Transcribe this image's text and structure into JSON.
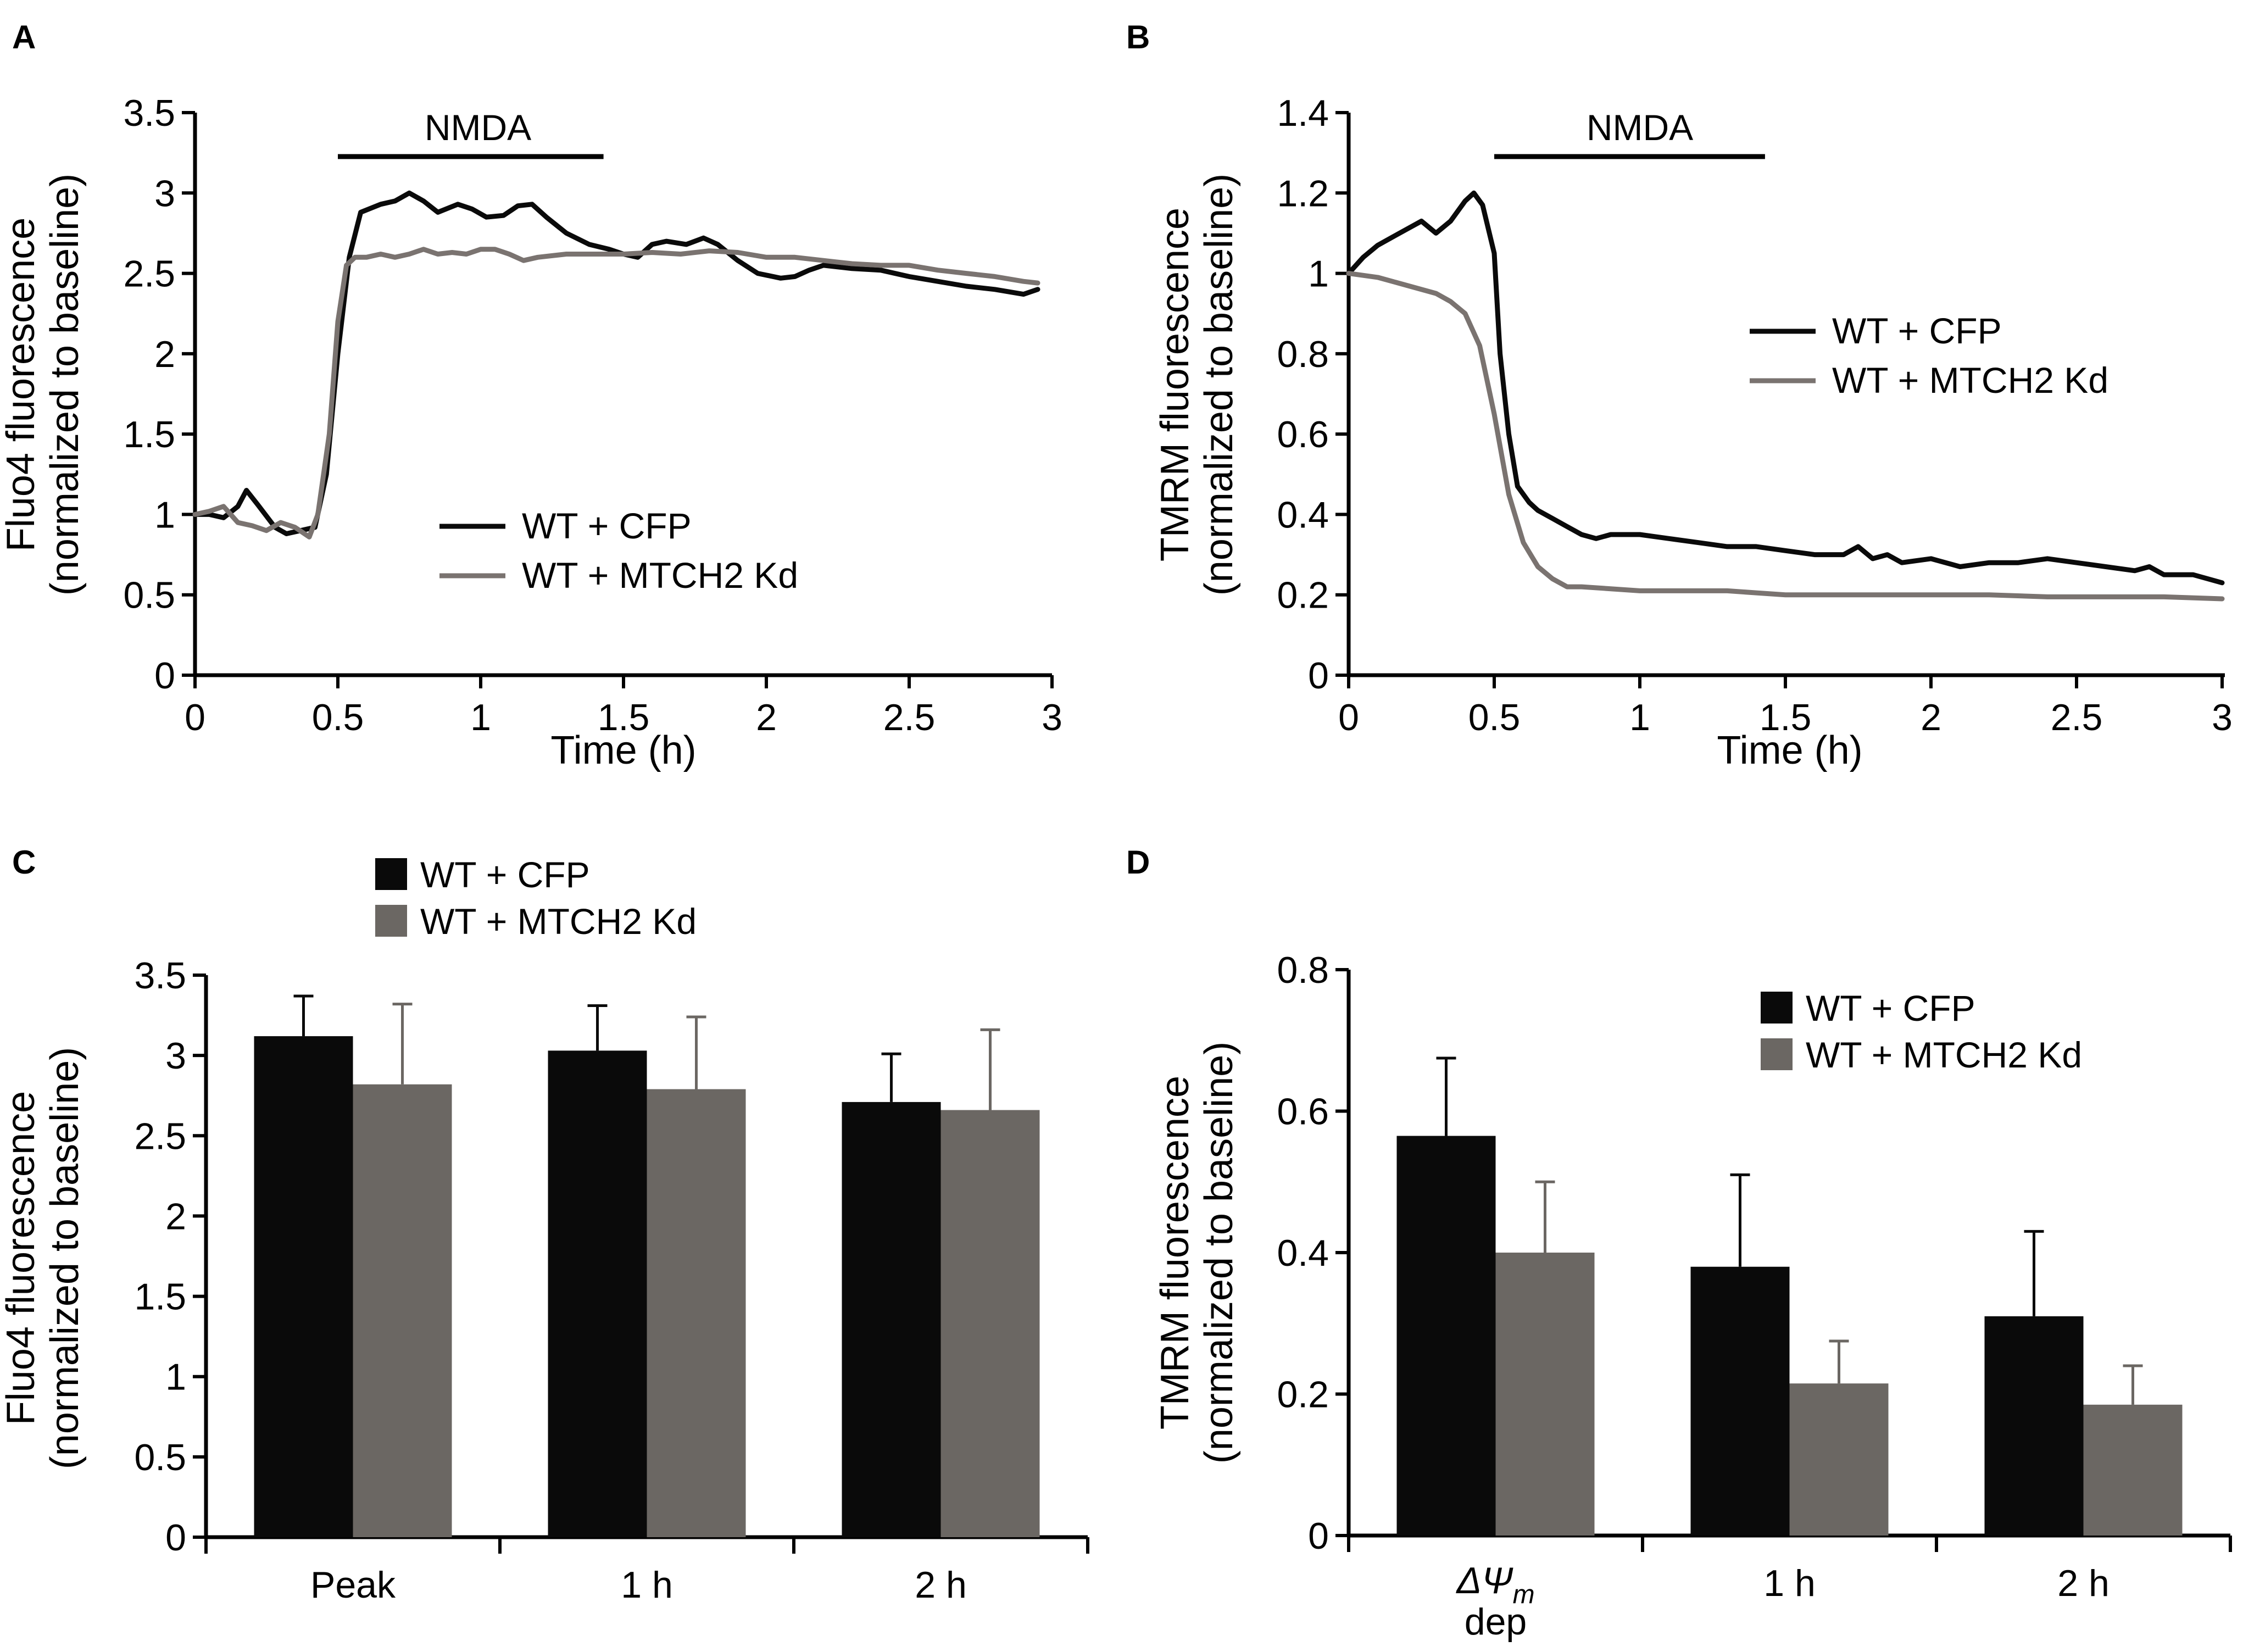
{
  "colors": {
    "wt_cfp": "#0a0a0a",
    "mtch2_line": "#7a7370",
    "mtch2_bar": "#6b6763",
    "axis": "#000000"
  },
  "chart_data": [
    {
      "panel": "A",
      "type": "line",
      "ylabel": [
        "Fluo4 fluorescence",
        "(normalized to baseline)"
      ],
      "xlabel": "Time (h)",
      "xlim": [
        0,
        3
      ],
      "ylim": [
        0,
        3.5
      ],
      "xticks": [
        0,
        0.5,
        1,
        1.5,
        2,
        2.5,
        3
      ],
      "xticklabels": [
        "0",
        "0.5",
        "1",
        "1.5",
        "2",
        "2.5",
        "3"
      ],
      "yticks": [
        0,
        0.5,
        1,
        1.5,
        2,
        2.5,
        3,
        3.5
      ],
      "yticklabels": [
        "0",
        "0.5",
        "1",
        "1.5",
        "2",
        "2.5",
        "3",
        "3.5"
      ],
      "annotation": {
        "text": "NMDA",
        "x_start": 0.5,
        "x_end": 1.43
      },
      "legend": [
        "WT + CFP",
        "WT + MTCH2 Kd"
      ],
      "legend_italic": false,
      "legend_position": "center-left",
      "series": [
        {
          "name": "WT + CFP",
          "color": "#0a0a0a",
          "x": [
            0,
            0.05,
            0.1,
            0.15,
            0.18,
            0.22,
            0.28,
            0.32,
            0.37,
            0.42,
            0.46,
            0.5,
            0.54,
            0.58,
            0.65,
            0.7,
            0.75,
            0.8,
            0.85,
            0.92,
            0.97,
            1.02,
            1.08,
            1.13,
            1.18,
            1.23,
            1.3,
            1.38,
            1.45,
            1.5,
            1.55,
            1.6,
            1.65,
            1.72,
            1.78,
            1.83,
            1.9,
            1.97,
            2.05,
            2.1,
            2.15,
            2.2,
            2.3,
            2.4,
            2.5,
            2.6,
            2.7,
            2.8,
            2.9,
            2.95
          ],
          "values": [
            1.0,
            1.0,
            0.98,
            1.05,
            1.15,
            1.06,
            0.92,
            0.88,
            0.9,
            0.92,
            1.25,
            2.0,
            2.6,
            2.88,
            2.93,
            2.95,
            3.0,
            2.95,
            2.88,
            2.93,
            2.9,
            2.85,
            2.86,
            2.92,
            2.93,
            2.85,
            2.75,
            2.68,
            2.65,
            2.62,
            2.6,
            2.68,
            2.7,
            2.68,
            2.72,
            2.68,
            2.58,
            2.5,
            2.47,
            2.48,
            2.52,
            2.55,
            2.53,
            2.52,
            2.48,
            2.45,
            2.42,
            2.4,
            2.37,
            2.4
          ]
        },
        {
          "name": "WT + MTCH2 Kd",
          "color": "#7a7370",
          "x": [
            0,
            0.05,
            0.1,
            0.15,
            0.2,
            0.25,
            0.3,
            0.35,
            0.4,
            0.43,
            0.47,
            0.5,
            0.53,
            0.56,
            0.6,
            0.65,
            0.7,
            0.75,
            0.8,
            0.85,
            0.9,
            0.95,
            1.0,
            1.05,
            1.1,
            1.15,
            1.2,
            1.3,
            1.4,
            1.5,
            1.6,
            1.7,
            1.8,
            1.9,
            2.0,
            2.1,
            2.2,
            2.3,
            2.4,
            2.5,
            2.6,
            2.7,
            2.8,
            2.9,
            2.95
          ],
          "values": [
            1.0,
            1.02,
            1.05,
            0.95,
            0.93,
            0.9,
            0.95,
            0.92,
            0.86,
            1.0,
            1.5,
            2.2,
            2.55,
            2.6,
            2.6,
            2.62,
            2.6,
            2.62,
            2.65,
            2.62,
            2.63,
            2.62,
            2.65,
            2.65,
            2.62,
            2.58,
            2.6,
            2.62,
            2.62,
            2.62,
            2.63,
            2.62,
            2.64,
            2.63,
            2.6,
            2.6,
            2.58,
            2.56,
            2.55,
            2.55,
            2.52,
            2.5,
            2.48,
            2.45,
            2.44
          ]
        }
      ]
    },
    {
      "panel": "B",
      "type": "line",
      "ylabel": [
        "TMRM fluorescence",
        "(normalized to baseline)"
      ],
      "xlabel": "Time (h)",
      "xlim": [
        0,
        3
      ],
      "ylim": [
        0,
        1.4
      ],
      "xticks": [
        0,
        0.5,
        1,
        1.5,
        2,
        2.5,
        3
      ],
      "xticklabels": [
        "0",
        "0.5",
        "1",
        "1.5",
        "2",
        "2.5",
        "3"
      ],
      "yticks": [
        0,
        0.2,
        0.4,
        0.6,
        0.8,
        1,
        1.2,
        1.4
      ],
      "yticklabels": [
        "0",
        "0.2",
        "0.4",
        "0.6",
        "0.8",
        "1",
        "1.2",
        "1.4"
      ],
      "annotation": {
        "text": "NMDA",
        "x_start": 0.5,
        "x_end": 1.43
      },
      "legend": [
        "WT + CFP",
        "WT + MTCH2 Kd"
      ],
      "legend_italic": true,
      "legend_position": "top-right",
      "series": [
        {
          "name": "WT + CFP",
          "color": "#0a0a0a",
          "x": [
            0,
            0.05,
            0.1,
            0.15,
            0.2,
            0.25,
            0.3,
            0.35,
            0.4,
            0.43,
            0.46,
            0.5,
            0.52,
            0.55,
            0.58,
            0.62,
            0.65,
            0.7,
            0.75,
            0.8,
            0.85,
            0.9,
            1.0,
            1.1,
            1.2,
            1.3,
            1.4,
            1.5,
            1.6,
            1.7,
            1.75,
            1.8,
            1.85,
            1.9,
            2.0,
            2.1,
            2.2,
            2.3,
            2.4,
            2.5,
            2.6,
            2.7,
            2.75,
            2.8,
            2.9,
            3.0
          ],
          "values": [
            1.0,
            1.04,
            1.07,
            1.09,
            1.11,
            1.13,
            1.1,
            1.13,
            1.18,
            1.2,
            1.17,
            1.05,
            0.8,
            0.6,
            0.47,
            0.43,
            0.41,
            0.39,
            0.37,
            0.35,
            0.34,
            0.35,
            0.35,
            0.34,
            0.33,
            0.32,
            0.32,
            0.31,
            0.3,
            0.3,
            0.32,
            0.29,
            0.3,
            0.28,
            0.29,
            0.27,
            0.28,
            0.28,
            0.29,
            0.28,
            0.27,
            0.26,
            0.27,
            0.25,
            0.25,
            0.23
          ]
        },
        {
          "name": "WT + MTCH2 Kd",
          "color": "#7a7370",
          "x": [
            0,
            0.1,
            0.2,
            0.3,
            0.35,
            0.4,
            0.45,
            0.5,
            0.55,
            0.6,
            0.65,
            0.7,
            0.75,
            0.8,
            0.9,
            1.0,
            1.1,
            1.2,
            1.3,
            1.4,
            1.5,
            1.6,
            1.7,
            1.8,
            1.9,
            2.0,
            2.2,
            2.4,
            2.6,
            2.8,
            3.0
          ],
          "values": [
            1.0,
            0.99,
            0.97,
            0.95,
            0.93,
            0.9,
            0.82,
            0.65,
            0.45,
            0.33,
            0.27,
            0.24,
            0.22,
            0.22,
            0.215,
            0.21,
            0.21,
            0.21,
            0.21,
            0.205,
            0.2,
            0.2,
            0.2,
            0.2,
            0.2,
            0.2,
            0.2,
            0.195,
            0.195,
            0.195,
            0.19
          ]
        }
      ]
    },
    {
      "panel": "C",
      "type": "bar",
      "ylabel": [
        "Fluo4 fluorescence",
        "(normalized to baseline)"
      ],
      "ylim": [
        0,
        3.5
      ],
      "yticks": [
        0,
        0.5,
        1,
        1.5,
        2,
        2.5,
        3,
        3.5
      ],
      "yticklabels": [
        "0",
        "0.5",
        "1",
        "1.5",
        "2",
        "2.5",
        "3",
        "3.5"
      ],
      "categories": [
        "Peak",
        "1 h",
        "2 h"
      ],
      "legend": [
        "WT + CFP",
        "WT + MTCH2 Kd"
      ],
      "legend_italic": true,
      "legend_position": "top-center",
      "series": [
        {
          "name": "WT + CFP",
          "color": "#0a0a0a",
          "values": [
            3.12,
            3.03,
            2.71
          ],
          "errors": [
            0.25,
            0.28,
            0.3
          ]
        },
        {
          "name": "WT + MTCH2 Kd",
          "color": "#6b6763",
          "values": [
            2.82,
            2.79,
            2.66
          ],
          "errors": [
            0.5,
            0.45,
            0.5
          ]
        }
      ]
    },
    {
      "panel": "D",
      "type": "bar",
      "ylabel": [
        "TMRM fluorescence",
        "(normalized to baseline)"
      ],
      "ylim": [
        0,
        0.8
      ],
      "yticks": [
        0,
        0.2,
        0.4,
        0.6,
        0.8
      ],
      "yticklabels": [
        "0",
        "0.2",
        "0.4",
        "0.6",
        "0.8"
      ],
      "categories": [
        "ΔΨm dep",
        "1 h",
        "2 h"
      ],
      "category_display": [
        [
          "ΔΨ",
          "m",
          "dep"
        ],
        [
          "1 h"
        ],
        [
          "2 h"
        ]
      ],
      "legend": [
        "WT + CFP",
        "WT + MTCH2 Kd"
      ],
      "legend_italic": true,
      "legend_position": "top-right",
      "series": [
        {
          "name": "WT + CFP",
          "color": "#0a0a0a",
          "values": [
            0.565,
            0.38,
            0.31
          ],
          "errors": [
            0.11,
            0.13,
            0.12
          ]
        },
        {
          "name": "WT + MTCH2 Kd",
          "color": "#6b6763",
          "values": [
            0.4,
            0.215,
            0.185
          ],
          "errors": [
            0.1,
            0.06,
            0.055
          ]
        }
      ]
    }
  ]
}
